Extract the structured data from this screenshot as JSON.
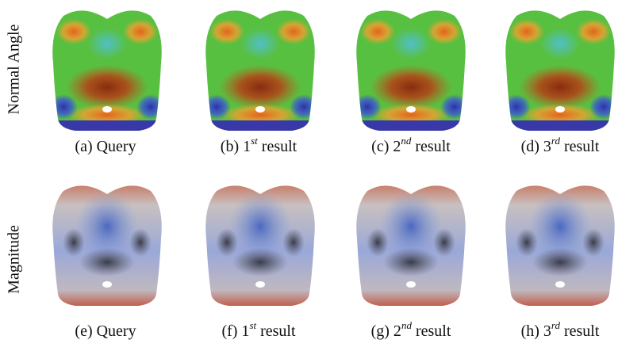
{
  "rows": [
    {
      "label": "Normal Angle",
      "captions": [
        {
          "prefix": "(a) Query"
        },
        {
          "prefix": "(b) 1",
          "sup": "st",
          "suffix": "result"
        },
        {
          "prefix": "(c) 2",
          "sup": "nd",
          "suffix": "result"
        },
        {
          "prefix": "(d) 3",
          "sup": "rd",
          "suffix": "result"
        }
      ]
    },
    {
      "label": "Magnitude",
      "captions": [
        {
          "prefix": "(e) Query"
        },
        {
          "prefix": "(f) 1",
          "sup": "st",
          "suffix": "result"
        },
        {
          "prefix": "(g) 2",
          "sup": "nd",
          "suffix": "result"
        },
        {
          "prefix": "(h) 3",
          "sup": "rd",
          "suffix": "result"
        }
      ]
    }
  ]
}
